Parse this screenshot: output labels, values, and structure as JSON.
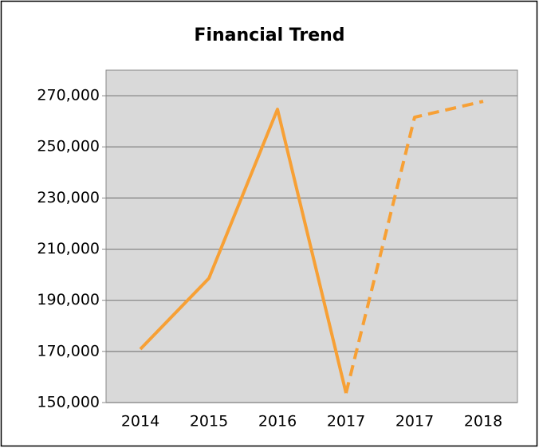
{
  "chart_data": {
    "type": "line",
    "title": "Financial Trend",
    "categories": [
      "2014",
      "2015",
      "2016",
      "2017",
      "2017",
      "2018"
    ],
    "series": [
      {
        "color": "#f7a035",
        "style": "solid",
        "values": [
          170900,
          198600,
          264700,
          153700,
          null,
          null
        ]
      },
      {
        "color": "#f7a035",
        "style": "dashed",
        "values": [
          null,
          null,
          null,
          153700,
          261600,
          267800
        ]
      }
    ],
    "ylim": [
      150000,
      280000
    ],
    "yticks": [
      {
        "value": 150000,
        "label": "150,000"
      },
      {
        "value": 170000,
        "label": "170,000"
      },
      {
        "value": 190000,
        "label": "190,000"
      },
      {
        "value": 210000,
        "label": "210,000"
      },
      {
        "value": 230000,
        "label": "230,000"
      },
      {
        "value": 250000,
        "label": "250,000"
      },
      {
        "value": 270000,
        "label": "270,000"
      }
    ],
    "grid": true
  }
}
